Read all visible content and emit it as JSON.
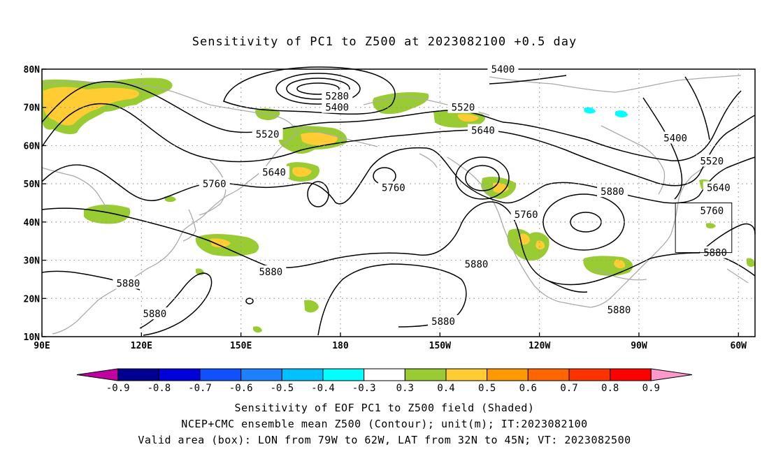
{
  "title": "Sensitivity of PC1 to Z500 at 2023082100 +0.5 day",
  "axes": {
    "lat_labels": [
      "80N",
      "70N",
      "60N",
      "50N",
      "40N",
      "30N",
      "20N",
      "10N"
    ],
    "lon_labels": [
      "90E",
      "120E",
      "150E",
      "180",
      "150W",
      "120W",
      "90W",
      "60W"
    ]
  },
  "contour_labels": [
    {
      "text": "5400",
      "lon": -131,
      "lat": 80
    },
    {
      "text": "5280",
      "lon": 179,
      "lat": 73
    },
    {
      "text": "5400",
      "lon": 179,
      "lat": 70
    },
    {
      "text": "5520",
      "lon": 158,
      "lat": 63
    },
    {
      "text": "5520",
      "lon": -143,
      "lat": 70
    },
    {
      "text": "5640",
      "lon": -137,
      "lat": 64
    },
    {
      "text": "5400",
      "lon": -79,
      "lat": 62
    },
    {
      "text": "5520",
      "lon": -68,
      "lat": 56
    },
    {
      "text": "5640",
      "lon": 160,
      "lat": 53
    },
    {
      "text": "5760",
      "lon": 142,
      "lat": 50
    },
    {
      "text": "5760",
      "lon": -164,
      "lat": 49
    },
    {
      "text": "5880",
      "lon": -98,
      "lat": 48
    },
    {
      "text": "5640",
      "lon": -66,
      "lat": 49
    },
    {
      "text": "5760",
      "lon": -68,
      "lat": 43
    },
    {
      "text": "5760",
      "lon": -124,
      "lat": 42
    },
    {
      "text": "5880",
      "lon": -139,
      "lat": 29
    },
    {
      "text": "5880",
      "lon": 159,
      "lat": 27
    },
    {
      "text": "5880",
      "lon": 116,
      "lat": 24
    },
    {
      "text": "5880",
      "lon": -149,
      "lat": 14
    },
    {
      "text": "5880",
      "lon": -96,
      "lat": 17
    },
    {
      "text": "5880",
      "lon": -67,
      "lat": 32
    },
    {
      "text": "5880",
      "lon": 124,
      "lat": 16
    }
  ],
  "valid_box": {
    "lon_min": -79,
    "lon_max": -62,
    "lat_min": 32,
    "lat_max": 45
  },
  "colorbar": {
    "labels": [
      "-0.9",
      "-0.8",
      "-0.7",
      "-0.6",
      "-0.5",
      "-0.4",
      "-0.3",
      "0.3",
      "0.4",
      "0.5",
      "0.6",
      "0.7",
      "0.8",
      "0.9"
    ],
    "colors": [
      "#c000a0",
      "#000090",
      "#0000d8",
      "#1050ff",
      "#1c80ff",
      "#00c0ff",
      "#00ffff",
      "#ffffff",
      "#99cc33",
      "#ffcc33",
      "#ff9900",
      "#ff6600",
      "#ff3300",
      "#ff0000",
      "#ff99cc"
    ]
  },
  "captions": [
    "Sensitivity of EOF PC1 to Z500 field (Shaded)",
    "NCEP+CMC ensemble mean Z500 (Contour); unit(m); IT:2023082100",
    "Valid area (box): LON from 79W to 62W, LAT from 32N to 45N; VT: 2023082500"
  ]
}
